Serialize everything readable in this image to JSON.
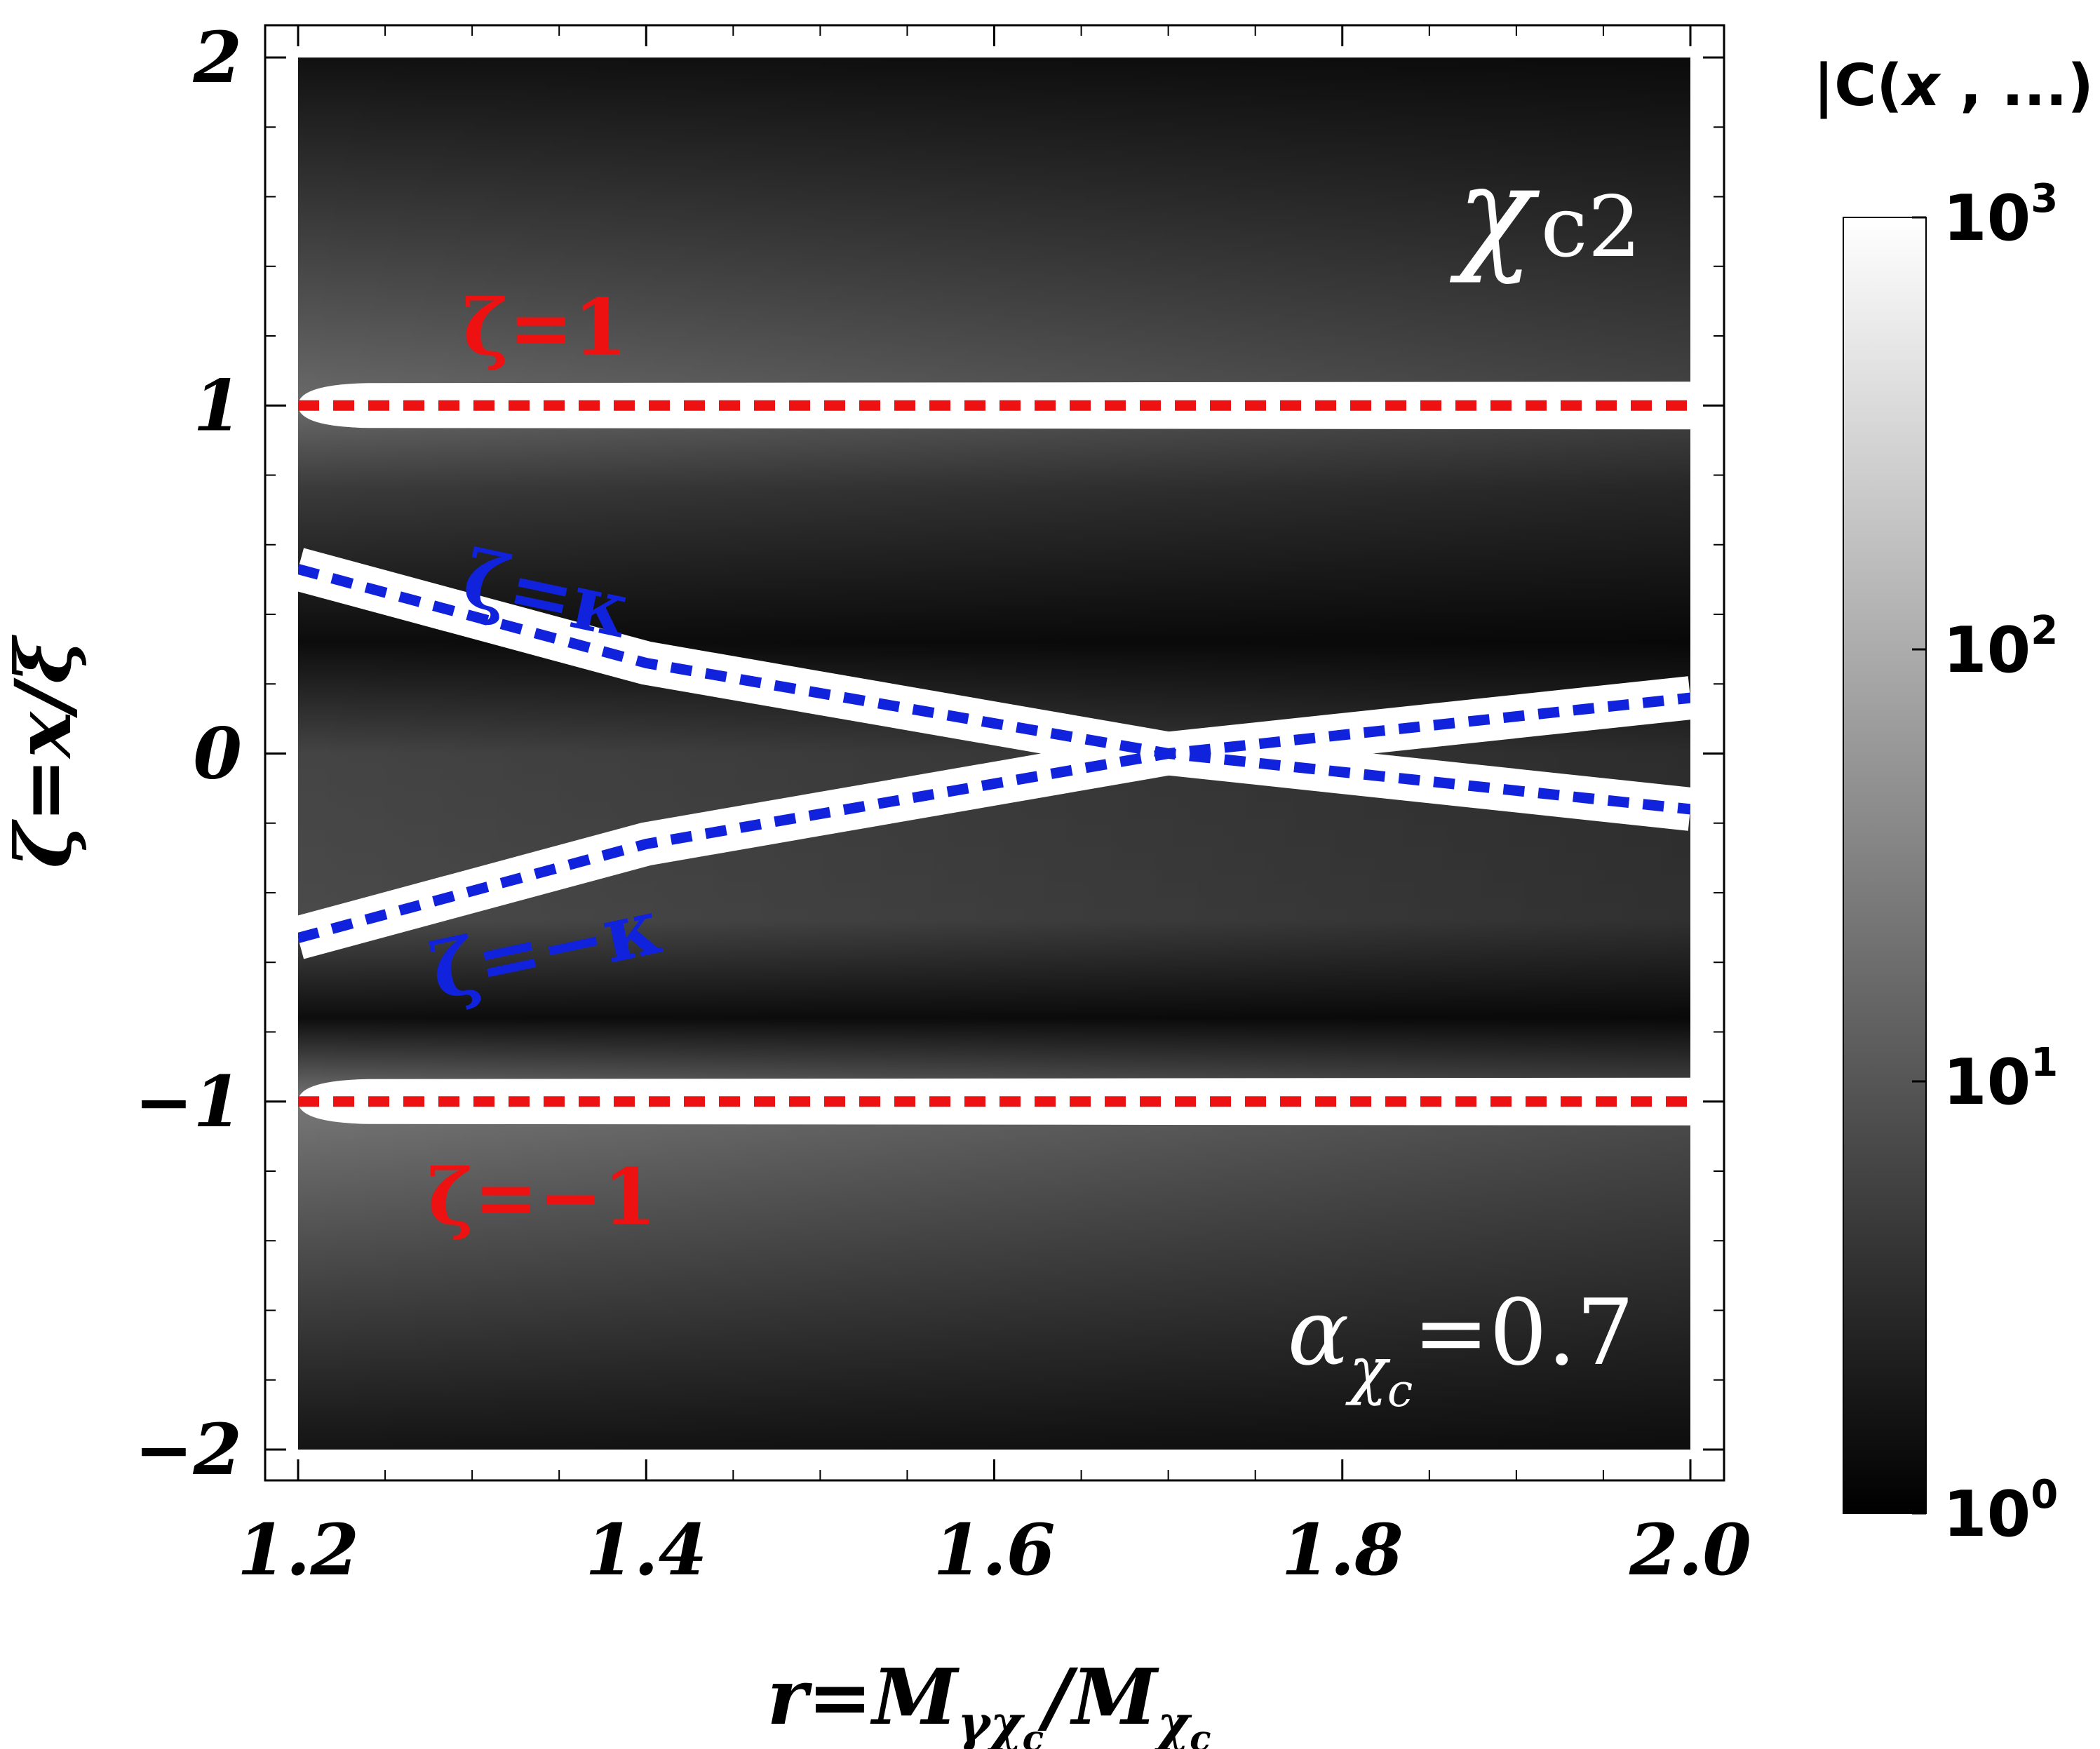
{
  "chart_data": {
    "type": "heatmap",
    "title": "",
    "xlabel": "r=M_{γχ_c}/M_{χ_c}",
    "xlabel_parts": {
      "main": "r=M",
      "sub1": "γχ",
      "sub1b": "c",
      "slash": "/M",
      "sub2": "χ",
      "sub2b": "c"
    },
    "ylabel": "ζ=x/ξ",
    "xlim": [
      1.2,
      2.0
    ],
    "ylim": [
      -2,
      2
    ],
    "xticks": [
      1.2,
      1.4,
      1.6,
      1.8,
      2.0
    ],
    "xtick_labels": [
      "1.2",
      "1.4",
      "1.6",
      "1.8",
      "2.0"
    ],
    "yticks": [
      -2,
      -1,
      0,
      1,
      2
    ],
    "ytick_labels": [
      "−2",
      "−1",
      "0",
      "1",
      "2"
    ],
    "colorbar": {
      "title": "|C(x , ...)|",
      "title_parts": {
        "a": "|C(",
        "b": "x",
        "c": " , ...)|"
      },
      "scale": "log",
      "range": [
        1,
        1000
      ],
      "tick_bases": [
        "10",
        "10",
        "10",
        "10"
      ],
      "tick_exponents": [
        "3",
        "2",
        "1",
        "0"
      ],
      "colors": [
        "#000000",
        "#ffffff"
      ]
    },
    "annotations": {
      "chi": "χ",
      "chi_sub": "c2",
      "alpha": "α",
      "alpha_sub": "χ",
      "alpha_subsub": "c",
      "alpha_value": "=0.7",
      "zeta_p1": "ζ=1",
      "zeta_m1": "ζ=−1",
      "zeta_pk": "ζ=κ",
      "zeta_mk": "ζ=−κ"
    },
    "lines": [
      {
        "name": "ζ=1",
        "color": "#ee1111",
        "style": "dashed",
        "x": [
          1.2,
          2.0
        ],
        "y": [
          1,
          1
        ]
      },
      {
        "name": "ζ=−1",
        "color": "#ee1111",
        "style": "dashed",
        "x": [
          1.2,
          2.0
        ],
        "y": [
          -1,
          -1
        ]
      },
      {
        "name": "ζ=κ",
        "color": "#1122dd",
        "style": "dashed",
        "x": [
          1.2,
          1.4,
          1.7,
          2.0
        ],
        "y": [
          0.53,
          0.26,
          0.0,
          -0.16
        ]
      },
      {
        "name": "ζ=−κ",
        "color": "#1122dd",
        "style": "dashed",
        "x": [
          1.2,
          1.4,
          1.7,
          2.0
        ],
        "y": [
          -0.53,
          -0.26,
          0.0,
          0.16
        ]
      }
    ]
  }
}
